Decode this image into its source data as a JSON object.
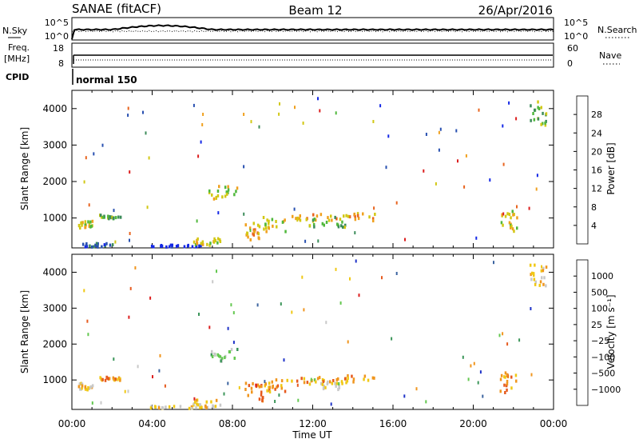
{
  "header": {
    "site": "SANAE (fitACF)",
    "beam": "Beam 12",
    "date": "26/Apr/2016"
  },
  "strip_labels": {
    "nsky": "N.Sky",
    "nsky_ticks": [
      "10^5",
      "10^0"
    ],
    "nsearch": "N.Search",
    "nsearch_ticks": [
      "10^5",
      "10^0"
    ],
    "freq": "Freq.",
    "freq_unit": "[MHz]",
    "freq_ticks": [
      "18",
      "8"
    ],
    "nave": "Nave",
    "nave_ticks": [
      "60",
      "0"
    ],
    "cpid": "CPID",
    "cpid_value": "normal 150"
  },
  "chart_data": [
    {
      "type": "heatmap",
      "name": "power-panel",
      "ylabel": "Slant Range [km]",
      "yticks": [
        1000,
        2000,
        3000,
        4000
      ],
      "ylim": [
        180,
        4500
      ],
      "xlim_hours": [
        0,
        24
      ],
      "colorbar": {
        "label": "Power [dB]",
        "ticks": [
          "4",
          "8",
          "12",
          "16",
          "20",
          "24",
          "28"
        ],
        "colors": [
          "#1428e6",
          "#2850b0",
          "#3c8c5a",
          "#50b83c",
          "#d2c814",
          "#f0a01e",
          "#e8641e",
          "#dc1e1e"
        ]
      },
      "echo_regions": [
        {
          "t": [
            1.3,
            2.4
          ],
          "r": [
            950,
            1060
          ],
          "level": 3
        },
        {
          "t": [
            0.3,
            1.0
          ],
          "r": [
            700,
            900
          ],
          "level": 4
        },
        {
          "t": [
            0.5,
            2.0
          ],
          "r": [
            180,
            280
          ],
          "level": 1
        },
        {
          "t": [
            3.8,
            6.4
          ],
          "r": [
            180,
            240
          ],
          "level": 0
        },
        {
          "t": [
            6.0,
            7.4
          ],
          "r": [
            200,
            420
          ],
          "level": 4
        },
        {
          "t": [
            6.8,
            8.2
          ],
          "r": [
            1500,
            1850
          ],
          "level": 4
        },
        {
          "t": [
            8.6,
            9.5
          ],
          "r": [
            380,
            900
          ],
          "level": 5
        },
        {
          "t": [
            9.5,
            10.6
          ],
          "r": [
            600,
            1000
          ],
          "level": 4
        },
        {
          "t": [
            10.5,
            15.2
          ],
          "r": [
            900,
            1100
          ],
          "level": 5
        },
        {
          "t": [
            11.8,
            13.6
          ],
          "r": [
            700,
            1000
          ],
          "level": 3
        },
        {
          "t": [
            21.3,
            22.2
          ],
          "r": [
            600,
            1200
          ],
          "level": 4
        },
        {
          "t": [
            22.8,
            23.6
          ],
          "r": [
            3500,
            4200
          ],
          "level": 3
        }
      ]
    },
    {
      "type": "heatmap",
      "name": "velocity-panel",
      "ylabel": "Slant Range [km]",
      "yticks": [
        1000,
        2000,
        3000,
        4000
      ],
      "ylim": [
        180,
        4500
      ],
      "xlim_hours": [
        0,
        24
      ],
      "colorbar": {
        "label": "Velocity [m s⁻¹]",
        "ticks": [
          "1000",
          "500",
          "100",
          "25",
          "−25",
          "−100",
          "−500",
          "−1000"
        ],
        "colors": [
          "#1e32c8",
          "#3c64a0",
          "#3c965a",
          "#64c850",
          "#c8c8c8",
          "#f0c814",
          "#f0961e",
          "#e65a1e",
          "#dc1e1e"
        ]
      },
      "echo_regions": [
        {
          "t": [
            1.3,
            2.4
          ],
          "r": [
            950,
            1060
          ],
          "level": 6
        },
        {
          "t": [
            0.3,
            1.0
          ],
          "r": [
            700,
            900
          ],
          "level": 5
        },
        {
          "t": [
            3.8,
            6.4
          ],
          "r": [
            180,
            240
          ],
          "level": 5
        },
        {
          "t": [
            6.0,
            7.4
          ],
          "r": [
            200,
            420
          ],
          "level": 5
        },
        {
          "t": [
            6.8,
            8.2
          ],
          "r": [
            1500,
            1850
          ],
          "level": 3
        },
        {
          "t": [
            8.6,
            9.5
          ],
          "r": [
            380,
            900
          ],
          "level": 7
        },
        {
          "t": [
            9.5,
            10.6
          ],
          "r": [
            600,
            1000
          ],
          "level": 6
        },
        {
          "t": [
            10.5,
            15.2
          ],
          "r": [
            900,
            1100
          ],
          "level": 6
        },
        {
          "t": [
            11.8,
            13.6
          ],
          "r": [
            700,
            1000
          ],
          "level": 4
        },
        {
          "t": [
            21.3,
            22.2
          ],
          "r": [
            600,
            1200
          ],
          "level": 6
        },
        {
          "t": [
            22.8,
            23.6
          ],
          "r": [
            3500,
            4200
          ],
          "level": 5
        }
      ]
    }
  ],
  "xaxis": {
    "tick_labels": [
      "00:00",
      "04:00",
      "08:00",
      "12:00",
      "16:00",
      "20:00",
      "00:00"
    ],
    "tick_hours": [
      0,
      4,
      8,
      12,
      16,
      20,
      24
    ],
    "label": "Time UT"
  }
}
